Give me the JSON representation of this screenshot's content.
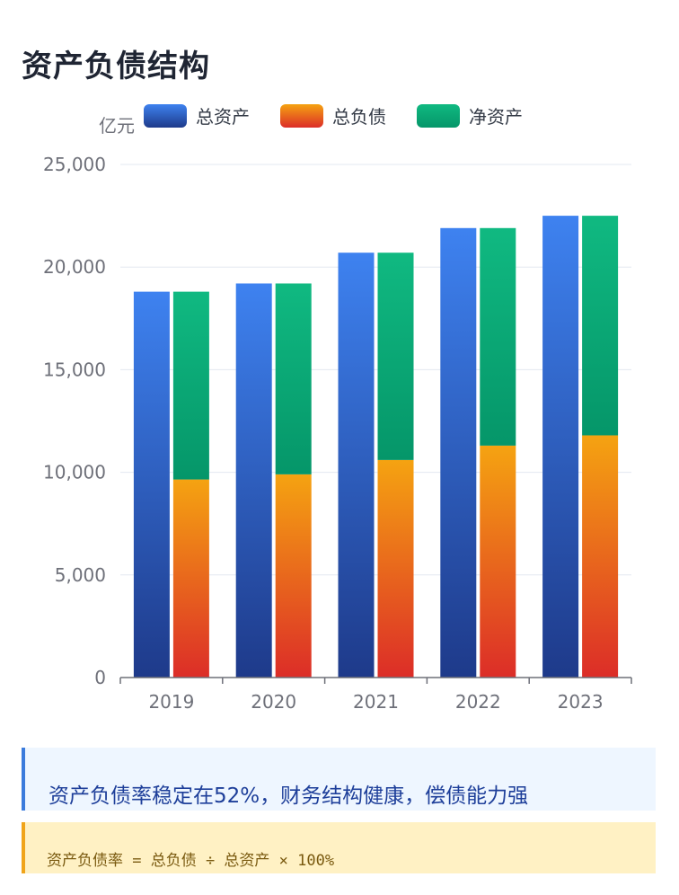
{
  "page": {
    "title": "资产负债结构"
  },
  "chart_data": {
    "type": "bar",
    "title": "资产负债结构",
    "ylabel": "亿元",
    "xlabel": "",
    "ylim": [
      0,
      25000
    ],
    "yticks": [
      0,
      5000,
      10000,
      15000,
      20000,
      25000
    ],
    "ytick_labels": [
      "0",
      "5,000",
      "10,000",
      "15,000",
      "20,000",
      "25,000"
    ],
    "categories": [
      "2019",
      "2020",
      "2021",
      "2022",
      "2023"
    ],
    "stacked_groups": "总负债 and 净资产 stacked in second bar",
    "legend_position": "top",
    "series": [
      {
        "name": "总资产",
        "values": [
          18800,
          19200,
          20700,
          21900,
          22500
        ],
        "stack": "a"
      },
      {
        "name": "总负债",
        "values": [
          9650,
          9900,
          10600,
          11300,
          11800
        ],
        "stack": "b"
      },
      {
        "name": "净资产",
        "values": [
          9150,
          9300,
          10100,
          10600,
          10700
        ],
        "stack": "b"
      }
    ],
    "colors": {
      "assets_top": "#3e82f0",
      "assets_bottom": "#1e3a8a",
      "liab_top": "#f5a311",
      "liab_bottom": "#dc2d28",
      "equity_top": "#10b981",
      "equity_bottom": "#059669",
      "grid": "#e3e8f0",
      "axis": "#6e7079",
      "tick_text": "#6e7079"
    }
  },
  "notes": {
    "highlight": "资产负债率稳定在52%，财务结构健康，偿债能力强",
    "formula": "资产负债率 = 总负债 ÷ 总资产 × 100%",
    "highlight_color": "#3b7bdc",
    "formula_color": "#f0a41a"
  }
}
